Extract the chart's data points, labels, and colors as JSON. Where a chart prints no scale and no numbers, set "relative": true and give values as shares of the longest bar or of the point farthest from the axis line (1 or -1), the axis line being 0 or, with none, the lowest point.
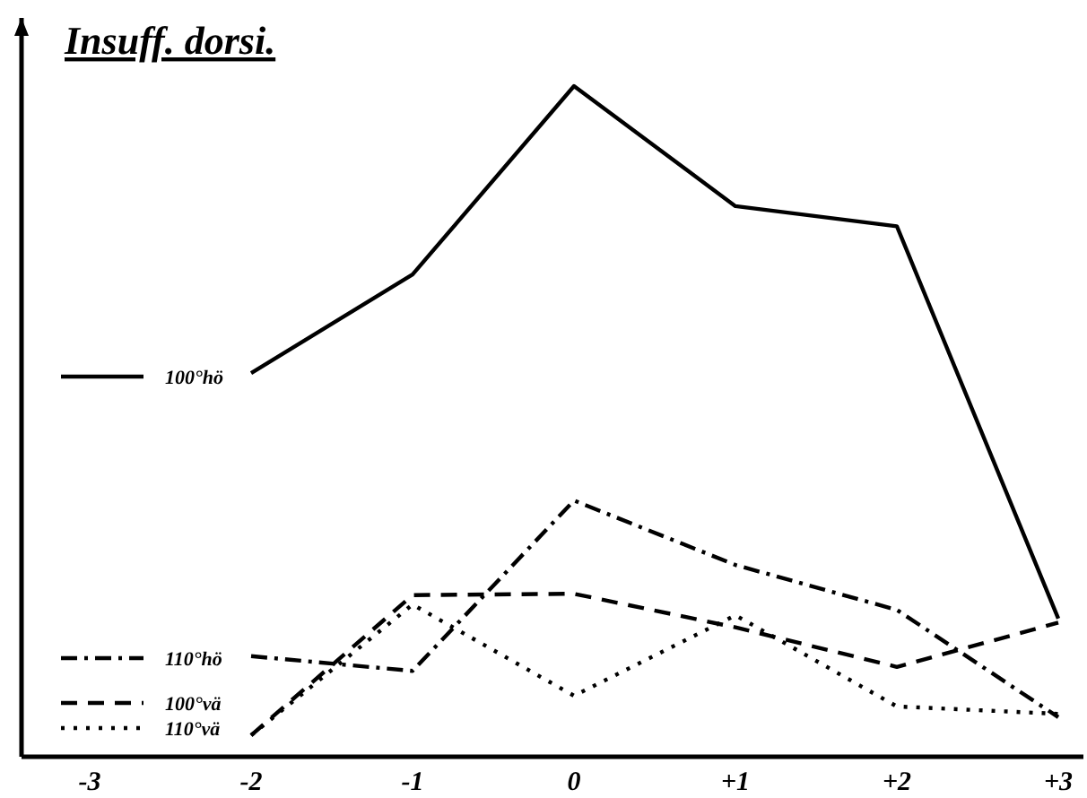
{
  "chart_data": {
    "type": "line",
    "title": "Insuff. dorsi.",
    "relative": true,
    "categories": [
      "-3",
      "-2",
      "-1",
      "0",
      "+1",
      "+2",
      "+3"
    ],
    "legend": "left",
    "grid": false,
    "series": [
      {
        "name": "100°hö",
        "color": "#000000",
        "line_style": "solid",
        "values": [
          null,
          0.572,
          0.719,
          1,
          0.821,
          0.791,
          0.206
        ]
      },
      {
        "name": "110°hö",
        "color": "#000000",
        "line_style": "dashdot",
        "values": [
          null,
          0.15,
          0.128,
          0.382,
          0.286,
          0.219,
          0.059
        ]
      },
      {
        "name": "100°vä",
        "color": "#000000",
        "line_style": "dashed",
        "values": [
          null,
          0.032,
          0.241,
          0.243,
          0.193,
          0.134,
          0.2
        ]
      },
      {
        "name": "110°vä",
        "color": "#000000",
        "line_style": "dotted",
        "values": [
          null,
          0.032,
          0.227,
          0.091,
          0.211,
          0.075,
          0.064
        ]
      }
    ]
  }
}
